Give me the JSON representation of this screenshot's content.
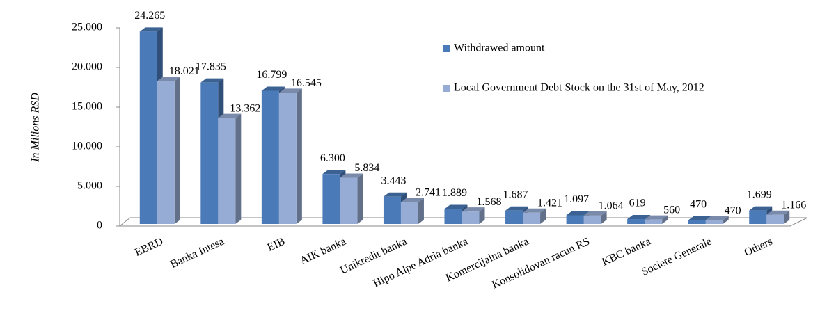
{
  "chart_data": {
    "type": "bar3d",
    "y_label": "In Milions RSD",
    "categories": [
      "EBRD",
      "Banka Intesa",
      "EIB",
      "AIK banka",
      "Unikredit banka",
      "Hipo Alpe Adria banka",
      "Komercijalna banka",
      "Konsolidovan racun RS",
      "KBC banka",
      "Societe Generale",
      "Others"
    ],
    "series": [
      {
        "name": "Withdrawed amount",
        "color": "#4a7ab8",
        "values": [
          24265,
          17835,
          16799,
          6300,
          3443,
          1889,
          1687,
          1097,
          619,
          470,
          1699
        ],
        "value_labels": [
          "24.265",
          "17.835",
          "16.799",
          "6.300",
          "3.443",
          "1.889",
          "1.687",
          "1.097",
          "619",
          "470",
          "1.699"
        ]
      },
      {
        "name": "Local Government Debt Stock on the 31st of May, 2012",
        "color": "#97acd4",
        "values": [
          18021,
          13362,
          16545,
          5834,
          2741,
          1568,
          1421,
          1064,
          560,
          470,
          1166
        ],
        "value_labels": [
          "18.021",
          "13.362",
          "16.545",
          "5.834",
          "2.741",
          "1.568",
          "1.421",
          "1.064",
          "560",
          "470",
          "1.166"
        ]
      }
    ],
    "ylim": [
      0,
      25000
    ],
    "yticks": [
      0,
      {
        "value": 5000,
        "label": "5.000"
      },
      {
        "value": 10000,
        "label": "10.000"
      },
      {
        "value": 15000,
        "label": "15.000"
      },
      {
        "value": 20000,
        "label": "20.000"
      },
      {
        "value": 25000,
        "label": "25.000"
      }
    ]
  }
}
